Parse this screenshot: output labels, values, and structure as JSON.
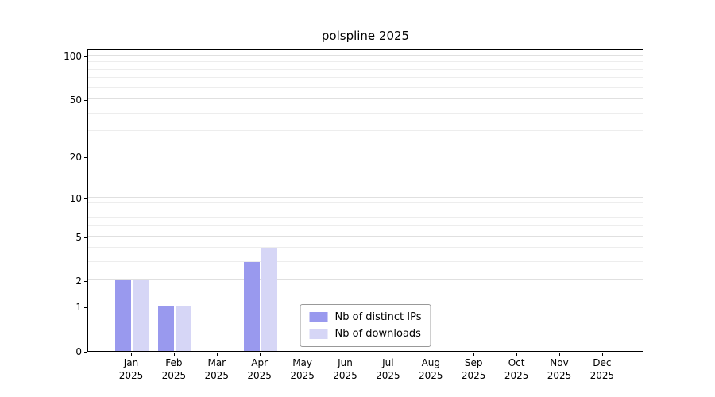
{
  "chart_data": {
    "type": "bar",
    "title": "polspline 2025",
    "categories": [
      "Jan",
      "Feb",
      "Mar",
      "Apr",
      "May",
      "Jun",
      "Jul",
      "Aug",
      "Sep",
      "Oct",
      "Nov",
      "Dec"
    ],
    "year": "2025",
    "series": [
      {
        "name": "Nb of distinct IPs",
        "color": "#9999ee",
        "values": [
          2,
          1,
          0,
          3,
          0,
          0,
          0,
          0,
          0,
          0,
          0,
          0
        ]
      },
      {
        "name": "Nb of downloads",
        "color": "#d6d6f6",
        "values": [
          2,
          1,
          0,
          4,
          0,
          0,
          0,
          0,
          0,
          0,
          0,
          0
        ]
      }
    ],
    "y_ticks": [
      0,
      1,
      2,
      5,
      10,
      20,
      50,
      100
    ],
    "scale": "log1p",
    "grid": "horizontal",
    "legend_position": "bottom-center",
    "colors": {
      "background": "#ffffff",
      "axis": "#000000",
      "major_grid": "#e0e0e0",
      "minor_grid": "#ededed"
    }
  }
}
